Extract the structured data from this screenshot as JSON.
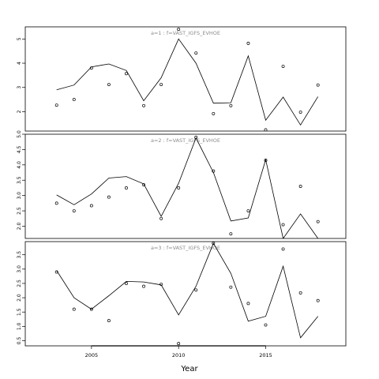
{
  "chart_data": [
    {
      "type": "line",
      "panel_label": "a=1 : f=VAST_IGFS_EVHOE",
      "x": [
        2003,
        2004,
        2005,
        2006,
        2007,
        2008,
        2009,
        2010,
        2011,
        2012,
        2013,
        2014,
        2015,
        2016,
        2017,
        2018
      ],
      "series": [
        {
          "style": "line",
          "values": [
            2.9,
            3.1,
            3.85,
            3.97,
            3.7,
            2.45,
            3.4,
            5.0,
            4.0,
            2.35,
            2.37,
            4.3,
            1.65,
            2.6,
            1.45,
            2.62
          ]
        },
        {
          "style": "points",
          "values": [
            2.27,
            2.5,
            3.8,
            3.12,
            3.57,
            2.25,
            3.12,
            5.4,
            4.42,
            1.92,
            2.25,
            4.82,
            1.25,
            3.87,
            1.98,
            3.1
          ]
        }
      ],
      "yticks": [
        2,
        3,
        4,
        5
      ],
      "ylim": [
        1.2,
        5.5
      ]
    },
    {
      "type": "line",
      "panel_label": "a=2 : f=VAST_IGFS_EVHOE",
      "x": [
        2003,
        2004,
        2005,
        2006,
        2007,
        2008,
        2009,
        2010,
        2011,
        2012,
        2013,
        2014,
        2015,
        2016,
        2017,
        2018
      ],
      "series": [
        {
          "style": "line",
          "values": [
            3.02,
            2.7,
            3.05,
            3.57,
            3.62,
            3.38,
            2.32,
            3.4,
            4.88,
            3.75,
            2.17,
            2.27,
            4.17,
            1.6,
            2.4,
            1.6
          ]
        },
        {
          "style": "points",
          "values": [
            2.75,
            2.5,
            2.67,
            2.95,
            3.25,
            3.35,
            2.25,
            3.25,
            4.9,
            3.8,
            1.75,
            2.5,
            4.15,
            2.05,
            3.3,
            2.15
          ]
        }
      ],
      "yticks": [
        2.0,
        2.5,
        3.0,
        3.5,
        4.0,
        4.5,
        5.0
      ],
      "ylim": [
        1.6,
        5.0
      ]
    },
    {
      "type": "line",
      "panel_label": "a=3 : f=VAST_IGFS_EVHOE",
      "x": [
        2003,
        2004,
        2005,
        2006,
        2007,
        2008,
        2009,
        2010,
        2011,
        2012,
        2013,
        2014,
        2015,
        2016,
        2017,
        2018
      ],
      "series": [
        {
          "style": "line",
          "values": [
            2.95,
            2.0,
            1.6,
            2.07,
            2.57,
            2.55,
            2.45,
            1.4,
            2.4,
            3.9,
            2.85,
            1.18,
            1.35,
            3.1,
            0.6,
            1.35
          ]
        },
        {
          "style": "points",
          "values": [
            2.9,
            1.6,
            1.6,
            1.2,
            2.5,
            2.4,
            2.47,
            0.4,
            2.27,
            3.9,
            2.37,
            1.8,
            1.05,
            3.7,
            2.17,
            1.9
          ]
        }
      ],
      "yticks": [
        0.5,
        1.0,
        1.5,
        2.0,
        2.5,
        3.0,
        3.5
      ],
      "ylim": [
        0.32,
        3.96
      ]
    }
  ],
  "xaxis": {
    "label": "Year",
    "ticks": [
      2005,
      2010,
      2015
    ],
    "xlim": [
      2001.2,
      2019.6
    ]
  },
  "colors": {
    "axis": "#000000",
    "line": "#000000",
    "panel_label": "#8c8c8c"
  }
}
